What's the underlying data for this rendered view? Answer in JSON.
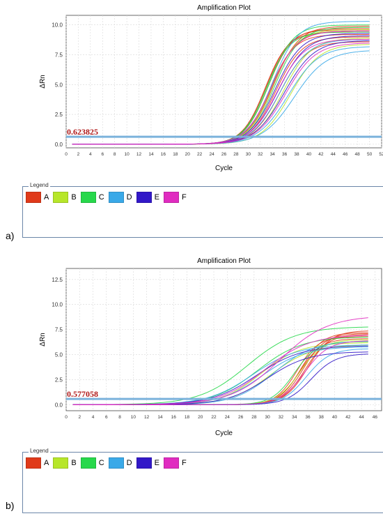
{
  "chart_data": [
    {
      "panel_label": "a)",
      "type": "line",
      "title": "Amplification Plot",
      "xlabel": "Cycle",
      "ylabel": "ΔRn",
      "xlim": [
        0,
        52
      ],
      "ylim": [
        -0.3,
        10.8
      ],
      "xticks": [
        0,
        2,
        4,
        6,
        8,
        10,
        12,
        14,
        16,
        18,
        20,
        22,
        24,
        26,
        28,
        30,
        32,
        34,
        36,
        38,
        40,
        42,
        44,
        46,
        48,
        50,
        52
      ],
      "yticks": [
        0.0,
        2.5,
        5.0,
        7.5,
        10.0
      ],
      "ytick_labels": [
        "0.0",
        "2.5",
        "5.0",
        "7.5",
        "10.0"
      ],
      "grid": true,
      "threshold": {
        "value": 0.623825,
        "label": "0.623825"
      },
      "curve_x_end": 50,
      "series": [
        {
          "name": "A",
          "values": [
            {
              "midpoint": 33.0,
              "plateau": 9.6,
              "k": 0.52
            },
            {
              "midpoint": 33.6,
              "plateau": 9.2,
              "k": 0.5
            },
            {
              "midpoint": 34.2,
              "plateau": 9.9,
              "k": 0.48
            },
            {
              "midpoint": 32.8,
              "plateau": 9.4,
              "k": 0.53
            },
            {
              "midpoint": 33.3,
              "plateau": 9.7,
              "k": 0.51
            },
            {
              "midpoint": 34.6,
              "plateau": 9.0,
              "k": 0.47
            },
            {
              "midpoint": 35.2,
              "plateau": 8.6,
              "k": 0.45
            },
            {
              "midpoint": 33.9,
              "plateau": 9.5,
              "k": 0.49
            }
          ]
        },
        {
          "name": "B",
          "values": [
            {
              "midpoint": 35.8,
              "plateau": 8.9,
              "k": 0.44
            },
            {
              "midpoint": 37.0,
              "plateau": 8.4,
              "k": 0.42
            },
            {
              "midpoint": 34.0,
              "plateau": 9.6,
              "k": 0.49
            }
          ]
        },
        {
          "name": "C",
          "values": [
            {
              "midpoint": 33.4,
              "plateau": 10.0,
              "k": 0.5
            },
            {
              "midpoint": 34.4,
              "plateau": 9.8,
              "k": 0.48
            },
            {
              "midpoint": 33.0,
              "plateau": 9.4,
              "k": 0.52
            }
          ]
        },
        {
          "name": "D",
          "values": [
            {
              "midpoint": 36.6,
              "plateau": 8.2,
              "k": 0.4
            },
            {
              "midpoint": 37.6,
              "plateau": 7.9,
              "k": 0.38
            },
            {
              "midpoint": 34.0,
              "plateau": 10.3,
              "k": 0.48
            },
            {
              "midpoint": 35.3,
              "plateau": 8.8,
              "k": 0.43
            }
          ]
        },
        {
          "name": "E",
          "values": [
            {
              "midpoint": 35.0,
              "plateau": 9.1,
              "k": 0.44
            },
            {
              "midpoint": 36.0,
              "plateau": 8.7,
              "k": 0.41
            },
            {
              "midpoint": 34.5,
              "plateau": 9.3,
              "k": 0.46
            }
          ]
        },
        {
          "name": "F",
          "values": [
            {
              "midpoint": 34.8,
              "plateau": 8.8,
              "k": 0.45
            },
            {
              "midpoint": 36.2,
              "plateau": 8.5,
              "k": 0.41
            },
            {
              "midpoint": 33.8,
              "plateau": 9.5,
              "k": 0.47
            }
          ]
        }
      ]
    },
    {
      "panel_label": "b)",
      "type": "line",
      "title": "Amplification Plot",
      "xlabel": "Cycle",
      "ylabel": "ΔRn",
      "xlim": [
        0,
        47
      ],
      "ylim": [
        -0.6,
        13.6
      ],
      "xticks": [
        0,
        2,
        4,
        6,
        8,
        10,
        12,
        14,
        16,
        18,
        20,
        22,
        24,
        26,
        28,
        30,
        32,
        34,
        36,
        38,
        40,
        42,
        44,
        46
      ],
      "yticks": [
        0.0,
        2.5,
        5.0,
        7.5,
        10.0,
        12.5
      ],
      "ytick_labels": [
        "0.0",
        "2.5",
        "5.0",
        "7.5",
        "10.0",
        "12.5"
      ],
      "grid": true,
      "threshold": {
        "value": 0.577058,
        "label": "0.577058"
      },
      "curve_x_end": 45,
      "series": [
        {
          "name": "A",
          "values": [
            {
              "midpoint": 35.0,
              "plateau": 7.2,
              "k": 0.62
            },
            {
              "midpoint": 35.6,
              "plateau": 7.0,
              "k": 0.6
            },
            {
              "midpoint": 34.4,
              "plateau": 6.8,
              "k": 0.64
            },
            {
              "midpoint": 36.0,
              "plateau": 7.4,
              "k": 0.58
            },
            {
              "midpoint": 34.8,
              "plateau": 6.6,
              "k": 0.62
            },
            {
              "midpoint": 35.3,
              "plateau": 7.1,
              "k": 0.61
            }
          ]
        },
        {
          "name": "B",
          "values": [
            {
              "midpoint": 29.0,
              "plateau": 6.2,
              "k": 0.34
            },
            {
              "midpoint": 34.8,
              "plateau": 6.5,
              "k": 0.58
            },
            {
              "midpoint": 30.5,
              "plateau": 6.0,
              "k": 0.33
            }
          ]
        },
        {
          "name": "C",
          "values": [
            {
              "midpoint": 27.0,
              "plateau": 7.8,
              "k": 0.28
            },
            {
              "midpoint": 28.5,
              "plateau": 6.8,
              "k": 0.3
            },
            {
              "midpoint": 34.0,
              "plateau": 6.3,
              "k": 0.6
            }
          ]
        },
        {
          "name": "D",
          "values": [
            {
              "midpoint": 27.8,
              "plateau": 6.0,
              "k": 0.3
            },
            {
              "midpoint": 29.2,
              "plateau": 5.8,
              "k": 0.32
            },
            {
              "midpoint": 31.0,
              "plateau": 6.4,
              "k": 0.34
            },
            {
              "midpoint": 35.8,
              "plateau": 5.6,
              "k": 0.57
            }
          ]
        },
        {
          "name": "E",
          "values": [
            {
              "midpoint": 28.4,
              "plateau": 5.9,
              "k": 0.3
            },
            {
              "midpoint": 30.0,
              "plateau": 5.3,
              "k": 0.33
            },
            {
              "midpoint": 36.5,
              "plateau": 5.1,
              "k": 0.55
            }
          ]
        },
        {
          "name": "F",
          "values": [
            {
              "midpoint": 29.6,
              "plateau": 7.0,
              "k": 0.3
            },
            {
              "midpoint": 31.8,
              "plateau": 8.9,
              "k": 0.28
            },
            {
              "midpoint": 35.5,
              "plateau": 6.4,
              "k": 0.56
            }
          ]
        }
      ]
    }
  ],
  "legend": {
    "title": "Legend",
    "items": [
      {
        "label": "A",
        "color": "#e03a1a"
      },
      {
        "label": "B",
        "color": "#b7e62a"
      },
      {
        "label": "C",
        "color": "#27d84b"
      },
      {
        "label": "D",
        "color": "#3aa9e8"
      },
      {
        "label": "E",
        "color": "#3218c8"
      },
      {
        "label": "F",
        "color": "#e02cc0"
      }
    ]
  },
  "colors": {
    "threshold_line": "#7bb2dc",
    "threshold_label": "#b01818",
    "grid": "#d8d8d8",
    "axis": "#444444",
    "legend_border": "#6b86a8"
  }
}
